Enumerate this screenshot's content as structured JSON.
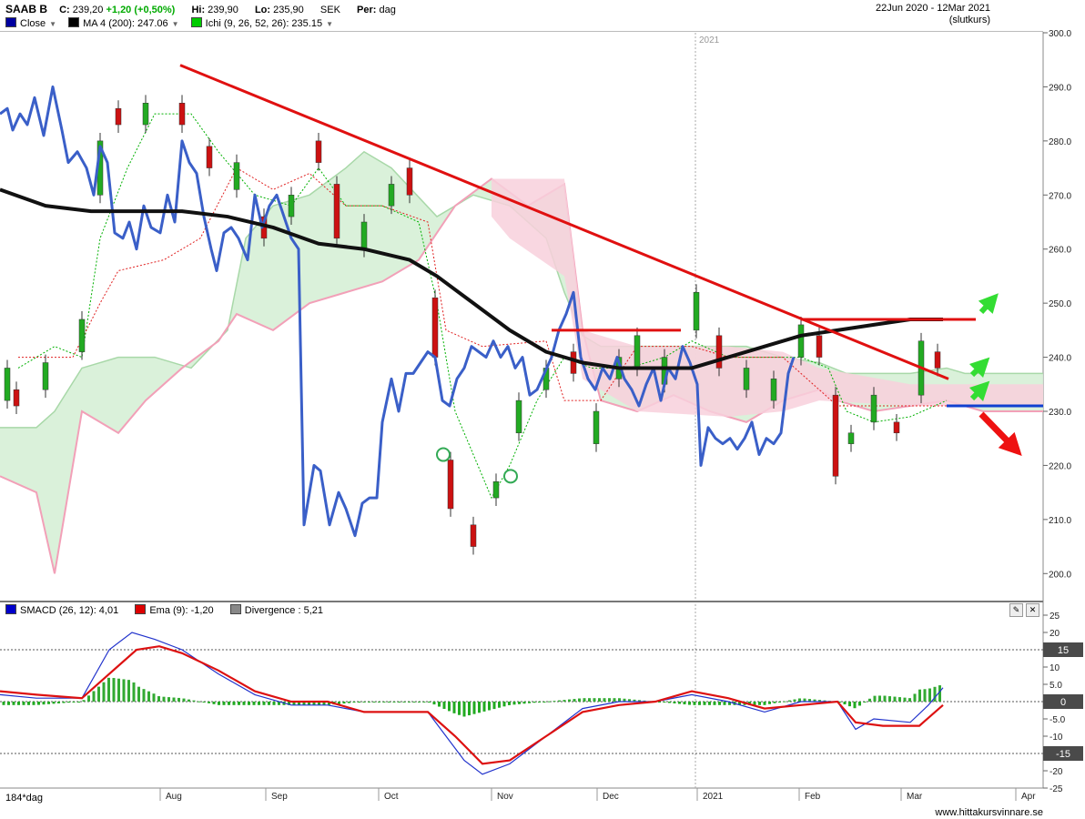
{
  "header": {
    "symbol": "SAAB B",
    "close_label": "C:",
    "close_value": "239,20",
    "change": "+1,20 (+0,50%)",
    "high_label": "Hi:",
    "high_value": "239,90",
    "low_label": "Lo:",
    "low_value": "235,90",
    "currency": "SEK",
    "period_label": "Per:",
    "period_value": "dag",
    "date_range": "22Jun 2020 - 12Mar 2021",
    "close_type": "(slutkurs)"
  },
  "legend": {
    "close": "Close",
    "ma": "MA 4 (200): 247.06",
    "ichi": "Ichi (9, 26, 52, 26): 235.15",
    "close_color": "#0000a0",
    "ma_color": "#000000",
    "ichi_color": "#00cc00"
  },
  "lower_legend": {
    "smacd": "SMACD (26, 12): 4,01",
    "ema": "Ema (9): -1,20",
    "divergence": "Divergence : 5,21",
    "smacd_color": "#0000cc",
    "ema_color": "#dd0000",
    "divergence_color": "#888888"
  },
  "bottom": {
    "period": "184*dag",
    "watermark": "www.hittakursvinnare.se",
    "year_marker": "2021"
  },
  "chart_data": [
    {
      "type": "line",
      "name": "price-panel",
      "y_axis_ticks": [
        "300.0",
        "290.0",
        "280.0",
        "270.0",
        "260.0",
        "250.0",
        "240.0",
        "230.0",
        "220.0",
        "210.0",
        "200.0"
      ],
      "ylim": [
        195,
        300
      ],
      "x_axis_ticks": [
        "Aug",
        "Sep",
        "Oct",
        "Nov",
        "Dec",
        "2021",
        "Feb",
        "Mar",
        "Apr"
      ],
      "series": [
        {
          "name": "Close",
          "color": "#3a5fc8",
          "values": [
            [
              0,
              285
            ],
            [
              8,
              286
            ],
            [
              14,
              282
            ],
            [
              22,
              285
            ],
            [
              30,
              283
            ],
            [
              38,
              288
            ],
            [
              48,
              281
            ],
            [
              58,
              290
            ],
            [
              68,
              282
            ],
            [
              75,
              276
            ],
            [
              85,
              278
            ],
            [
              95,
              275
            ],
            [
              103,
              270
            ],
            [
              110,
              279
            ],
            [
              118,
              276
            ],
            [
              126,
              263
            ],
            [
              135,
              262
            ],
            [
              142,
              265
            ],
            [
              150,
              260
            ],
            [
              158,
              268
            ],
            [
              166,
              264
            ],
            [
              176,
              263
            ],
            [
              184,
              270
            ],
            [
              192,
              265
            ],
            [
              200,
              280
            ],
            [
              208,
              276
            ],
            [
              216,
              274
            ],
            [
              224,
              266
            ],
            [
              232,
              260
            ],
            [
              238,
              256
            ],
            [
              246,
              263
            ],
            [
              254,
              264
            ],
            [
              262,
              262
            ],
            [
              272,
              258
            ],
            [
              280,
              270
            ],
            [
              288,
              264
            ],
            [
              296,
              268
            ],
            [
              304,
              270
            ],
            [
              312,
              266
            ],
            [
              320,
              262
            ],
            [
              328,
              260
            ],
            [
              334,
              209
            ],
            [
              345,
              220
            ],
            [
              352,
              219
            ],
            [
              362,
              209
            ],
            [
              372,
              215
            ],
            [
              380,
              212
            ],
            [
              390,
              207
            ],
            [
              398,
              213
            ],
            [
              406,
              214
            ],
            [
              414,
              214
            ],
            [
              420,
              228
            ],
            [
              430,
              236
            ],
            [
              438,
              230
            ],
            [
              446,
              237
            ],
            [
              454,
              237
            ],
            [
              462,
              239
            ],
            [
              470,
              241
            ],
            [
              478,
              240
            ],
            [
              486,
              232
            ],
            [
              494,
              231
            ],
            [
              502,
              236
            ],
            [
              510,
              238
            ],
            [
              518,
              242
            ],
            [
              526,
              241
            ],
            [
              534,
              240
            ],
            [
              542,
              243
            ],
            [
              550,
              240
            ],
            [
              558,
              242
            ],
            [
              566,
              238
            ],
            [
              574,
              240
            ],
            [
              582,
              233
            ],
            [
              590,
              234
            ],
            [
              598,
              237
            ],
            [
              606,
              240
            ],
            [
              614,
              245
            ],
            [
              622,
              248
            ],
            [
              630,
              252
            ],
            [
              638,
              240
            ],
            [
              646,
              236
            ],
            [
              654,
              234
            ],
            [
              662,
              238
            ],
            [
              670,
              236
            ],
            [
              678,
              240
            ],
            [
              686,
              236
            ],
            [
              694,
              234
            ],
            [
              702,
              231
            ],
            [
              710,
              235
            ],
            [
              718,
              238
            ],
            [
              726,
              232
            ],
            [
              734,
              238
            ],
            [
              742,
              236
            ],
            [
              750,
              242
            ],
            [
              758,
              239
            ],
            [
              766,
              235
            ],
            [
              770,
              220
            ],
            [
              778,
              227
            ],
            [
              786,
              225
            ],
            [
              794,
              224
            ],
            [
              802,
              225
            ],
            [
              810,
              223
            ],
            [
              818,
              225
            ],
            [
              826,
              228
            ],
            [
              834,
              222
            ],
            [
              842,
              225
            ],
            [
              850,
              224
            ],
            [
              858,
              226
            ],
            [
              866,
              237
            ],
            [
              872,
              240
            ]
          ]
        },
        {
          "name": "MA 4 (200)",
          "color": "#111111",
          "values": [
            [
              0,
              271
            ],
            [
              50,
              268
            ],
            [
              100,
              267
            ],
            [
              150,
              267
            ],
            [
              200,
              267
            ],
            [
              250,
              266
            ],
            [
              300,
              264
            ],
            [
              350,
              261
            ],
            [
              400,
              260
            ],
            [
              450,
              258
            ],
            [
              480,
              255
            ],
            [
              520,
              250
            ],
            [
              560,
              245
            ],
            [
              600,
              241
            ],
            [
              640,
              239
            ],
            [
              680,
              238
            ],
            [
              720,
              238
            ],
            [
              760,
              238
            ],
            [
              800,
              240
            ],
            [
              840,
              242
            ],
            [
              880,
              244
            ],
            [
              920,
              245
            ],
            [
              960,
              246
            ],
            [
              1000,
              247
            ],
            [
              1036,
              247
            ]
          ]
        },
        {
          "name": "Downtrend",
          "color": "#e01010",
          "values": [
            [
              198,
              294
            ],
            [
              1042,
              236
            ]
          ]
        },
        {
          "name": "Resistance",
          "color": "#e01010",
          "values": [
            [
              880,
              247
            ],
            [
              1072,
              247
            ]
          ]
        },
        {
          "name": "Support",
          "color": "#e01010",
          "values": [
            [
              606,
              245
            ],
            [
              748,
              245
            ]
          ]
        },
        {
          "name": "Level",
          "color": "#1040d0",
          "values": [
            [
              1040,
              231
            ],
            [
              1146,
              231
            ]
          ]
        }
      ],
      "candles_sample": [
        {
          "x": 8,
          "o": 232,
          "c": 238
        },
        {
          "x": 18,
          "o": 234,
          "c": 231
        },
        {
          "x": 50,
          "o": 234,
          "c": 239
        },
        {
          "x": 90,
          "o": 241,
          "c": 247
        },
        {
          "x": 110,
          "o": 270,
          "c": 280
        },
        {
          "x": 130,
          "o": 286,
          "c": 283
        },
        {
          "x": 160,
          "o": 283,
          "c": 287
        },
        {
          "x": 200,
          "o": 287,
          "c": 283
        },
        {
          "x": 230,
          "o": 279,
          "c": 275
        },
        {
          "x": 260,
          "o": 271,
          "c": 276
        },
        {
          "x": 290,
          "o": 266,
          "c": 262
        },
        {
          "x": 320,
          "o": 266,
          "c": 270
        },
        {
          "x": 350,
          "o": 280,
          "c": 276
        },
        {
          "x": 370,
          "o": 272,
          "c": 262
        },
        {
          "x": 400,
          "o": 260,
          "c": 265
        },
        {
          "x": 430,
          "o": 268,
          "c": 272
        },
        {
          "x": 450,
          "o": 275,
          "c": 270
        },
        {
          "x": 478,
          "o": 251,
          "c": 240
        },
        {
          "x": 495,
          "o": 221,
          "c": 212
        },
        {
          "x": 520,
          "o": 209,
          "c": 205
        },
        {
          "x": 545,
          "o": 214,
          "c": 217
        },
        {
          "x": 570,
          "o": 226,
          "c": 232
        },
        {
          "x": 600,
          "o": 234,
          "c": 238
        },
        {
          "x": 630,
          "o": 241,
          "c": 237
        },
        {
          "x": 655,
          "o": 224,
          "c": 230
        },
        {
          "x": 680,
          "o": 236,
          "c": 240
        },
        {
          "x": 700,
          "o": 238,
          "c": 244
        },
        {
          "x": 730,
          "o": 235,
          "c": 240
        },
        {
          "x": 765,
          "o": 245,
          "c": 252
        },
        {
          "x": 790,
          "o": 244,
          "c": 238
        },
        {
          "x": 820,
          "o": 234,
          "c": 238
        },
        {
          "x": 850,
          "o": 232,
          "c": 236
        },
        {
          "x": 880,
          "o": 240,
          "c": 246
        },
        {
          "x": 900,
          "o": 244,
          "c": 240
        },
        {
          "x": 918,
          "o": 233,
          "c": 218
        },
        {
          "x": 935,
          "o": 224,
          "c": 226
        },
        {
          "x": 960,
          "o": 228,
          "c": 233
        },
        {
          "x": 985,
          "o": 228,
          "c": 226
        },
        {
          "x": 1012,
          "o": 233,
          "c": 243
        },
        {
          "x": 1030,
          "o": 241,
          "c": 238
        }
      ]
    },
    {
      "type": "area",
      "name": "smacd-panel",
      "y_axis_ticks": [
        "25",
        "20",
        "15",
        "10",
        "5.0",
        "0",
        "-5.0",
        "-10",
        "-15",
        "-20",
        "-25"
      ],
      "ylim": [
        -25,
        25
      ],
      "highlighted_levels": [
        15,
        0,
        -15
      ],
      "series": [
        {
          "name": "SMACD (26, 12)",
          "color": "#2233cc",
          "values": [
            [
              0,
              2
            ],
            [
              40,
              1
            ],
            [
              90,
              1
            ],
            [
              120,
              15
            ],
            [
              145,
              20
            ],
            [
              170,
              18
            ],
            [
              200,
              15
            ],
            [
              240,
              8
            ],
            [
              280,
              2
            ],
            [
              320,
              -1
            ],
            [
              360,
              -1
            ],
            [
              400,
              -3
            ],
            [
              440,
              -3
            ],
            [
              470,
              -3
            ],
            [
              490,
              -10
            ],
            [
              510,
              -17
            ],
            [
              530,
              -21
            ],
            [
              560,
              -18
            ],
            [
              600,
              -10
            ],
            [
              640,
              -2
            ],
            [
              680,
              0
            ],
            [
              720,
              0
            ],
            [
              760,
              2
            ],
            [
              800,
              0
            ],
            [
              840,
              -3
            ],
            [
              880,
              0
            ],
            [
              920,
              0
            ],
            [
              940,
              -8
            ],
            [
              960,
              -5
            ],
            [
              1000,
              -6
            ],
            [
              1020,
              -1
            ],
            [
              1036,
              4
            ]
          ]
        },
        {
          "name": "Ema (9)",
          "color": "#dd1111",
          "values": [
            [
              0,
              3
            ],
            [
              40,
              2
            ],
            [
              90,
              1
            ],
            [
              120,
              8
            ],
            [
              150,
              15
            ],
            [
              175,
              16
            ],
            [
              200,
              14
            ],
            [
              240,
              9
            ],
            [
              280,
              3
            ],
            [
              320,
              0
            ],
            [
              360,
              0
            ],
            [
              400,
              -3
            ],
            [
              440,
              -3
            ],
            [
              470,
              -3
            ],
            [
              500,
              -10
            ],
            [
              530,
              -18
            ],
            [
              560,
              -17
            ],
            [
              600,
              -10
            ],
            [
              640,
              -3
            ],
            [
              680,
              -1
            ],
            [
              720,
              0
            ],
            [
              760,
              3
            ],
            [
              800,
              1
            ],
            [
              840,
              -2
            ],
            [
              880,
              -1
            ],
            [
              920,
              0
            ],
            [
              940,
              -6
            ],
            [
              970,
              -7
            ],
            [
              1010,
              -7
            ],
            [
              1036,
              -1
            ]
          ]
        }
      ]
    }
  ]
}
